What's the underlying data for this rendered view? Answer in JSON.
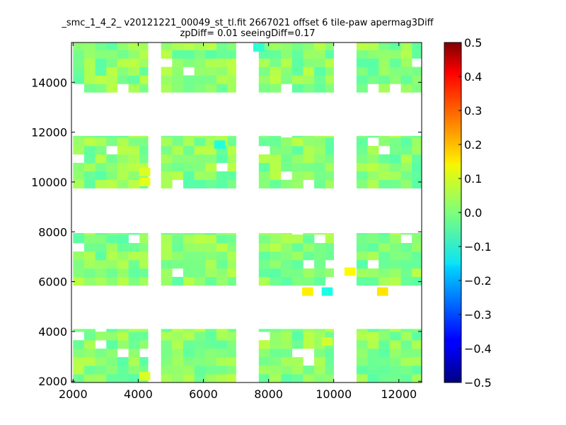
{
  "chart_data": {
    "type": "heatmap",
    "title_line1": "_smc_1_4_2_ v20121221_00049_st_tl.fit 2667021 offset 6 tile-paw apermag3Diff",
    "title_line2": "zpDiff= 0.01 seeingDiff=0.17",
    "xlim": [
      1950,
      12700
    ],
    "ylim": [
      1950,
      15600
    ],
    "xticks": [
      2000,
      4000,
      6000,
      8000,
      10000,
      12000
    ],
    "yticks": [
      2000,
      4000,
      6000,
      8000,
      10000,
      12000,
      14000
    ],
    "colorbar": {
      "vmin": -0.5,
      "vmax": 0.5,
      "ticks": [
        "0.5",
        "0.4",
        "0.3",
        "0.2",
        "0.1",
        "0.0",
        "−0.1",
        "−0.2",
        "−0.3",
        "−0.4",
        "−0.5"
      ],
      "colormap": "jet"
    },
    "cell_size": [
      340,
      340
    ],
    "column_groups_x": [
      [
        2000,
        4300
      ],
      [
        4700,
        7000
      ],
      [
        7700,
        10000
      ],
      [
        10700,
        12700
      ]
    ],
    "row_groups_y": [
      [
        1950,
        4100
      ],
      [
        5850,
        7950
      ],
      [
        9750,
        11850
      ],
      [
        13600,
        15600
      ]
    ],
    "outliers": [
      {
        "x": 10500,
        "y": 6400,
        "value": 0.13
      },
      {
        "x": 9200,
        "y": 5600,
        "value": 0.14
      },
      {
        "x": 11500,
        "y": 5600,
        "value": 0.15
      },
      {
        "x": 9800,
        "y": 5600,
        "value": -0.1
      },
      {
        "x": 4200,
        "y": 10400,
        "value": 0.09
      },
      {
        "x": 4200,
        "y": 10000,
        "value": 0.1
      },
      {
        "x": 4200,
        "y": 2200,
        "value": 0.09
      },
      {
        "x": 9800,
        "y": 3600,
        "value": 0.08
      },
      {
        "x": 7700,
        "y": 15400,
        "value": -0.08
      },
      {
        "x": 6500,
        "y": 11500,
        "value": -0.09
      }
    ]
  }
}
